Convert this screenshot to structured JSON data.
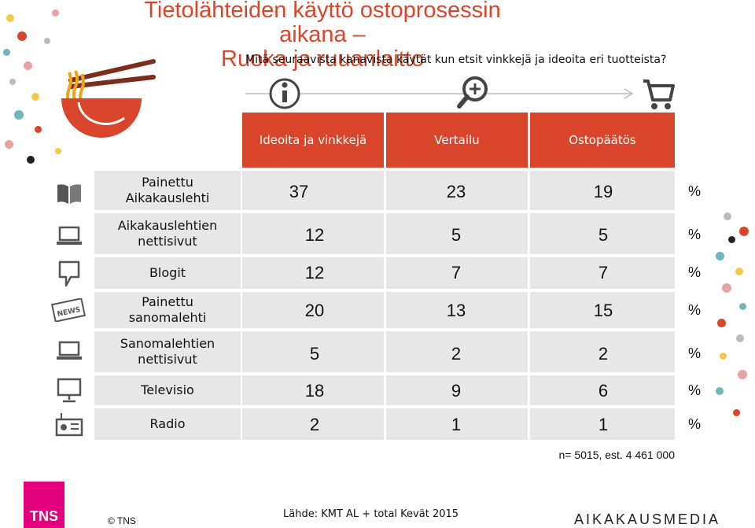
{
  "title": {
    "line1": "Tietolähteiden käyttö ostoprosessin aikana –",
    "line2": "Ruoka ja ruuanlaitto"
  },
  "question": "Mitä seuraavista kanavista käytät kun etsit vinkkejä ja ideoita eri tuotteista?",
  "process_icons": [
    "info-icon",
    "magnifier-plus-icon",
    "shopping-cart-icon"
  ],
  "columns": [
    "Ideoita ja vinkkejä",
    "Vertailu",
    "Ostopäätös"
  ],
  "unit": "%",
  "rows": [
    {
      "label": "Painettu\nAikakauslehti",
      "icon": "open-book-icon",
      "values": [
        "37",
        "23",
        "19"
      ]
    },
    {
      "label": "Aikakauslehtien\nnettisivut",
      "icon": "laptop-icon",
      "values": [
        "12",
        "5",
        "5"
      ]
    },
    {
      "label": "Blogit",
      "icon": "speech-bubble-icon",
      "values": [
        "12",
        "7",
        "7"
      ]
    },
    {
      "label": "Painettu\nsanomalehti",
      "icon": "newspaper-icon",
      "values": [
        "20",
        "13",
        "15"
      ]
    },
    {
      "label": "Sanomalehtien\nnettisivut",
      "icon": "laptop-icon",
      "values": [
        "5",
        "2",
        "2"
      ]
    },
    {
      "label": "Televisio",
      "icon": "tv-icon",
      "values": [
        "18",
        "9",
        "6"
      ]
    },
    {
      "label": "Radio",
      "icon": "radio-icon",
      "values": [
        "2",
        "1",
        "1"
      ]
    }
  ],
  "footnote": "n= 5015, est. 4 461 000",
  "source": "Lähde: KMT AL + total Kevät 2015",
  "copyright": "© TNS",
  "logo_tns": "TNS",
  "brand": "AIKAKAUSMEDIA",
  "colors": {
    "accent": "#d9452a",
    "row_bg": "#e7e7e7",
    "tns": "#e4007c"
  }
}
